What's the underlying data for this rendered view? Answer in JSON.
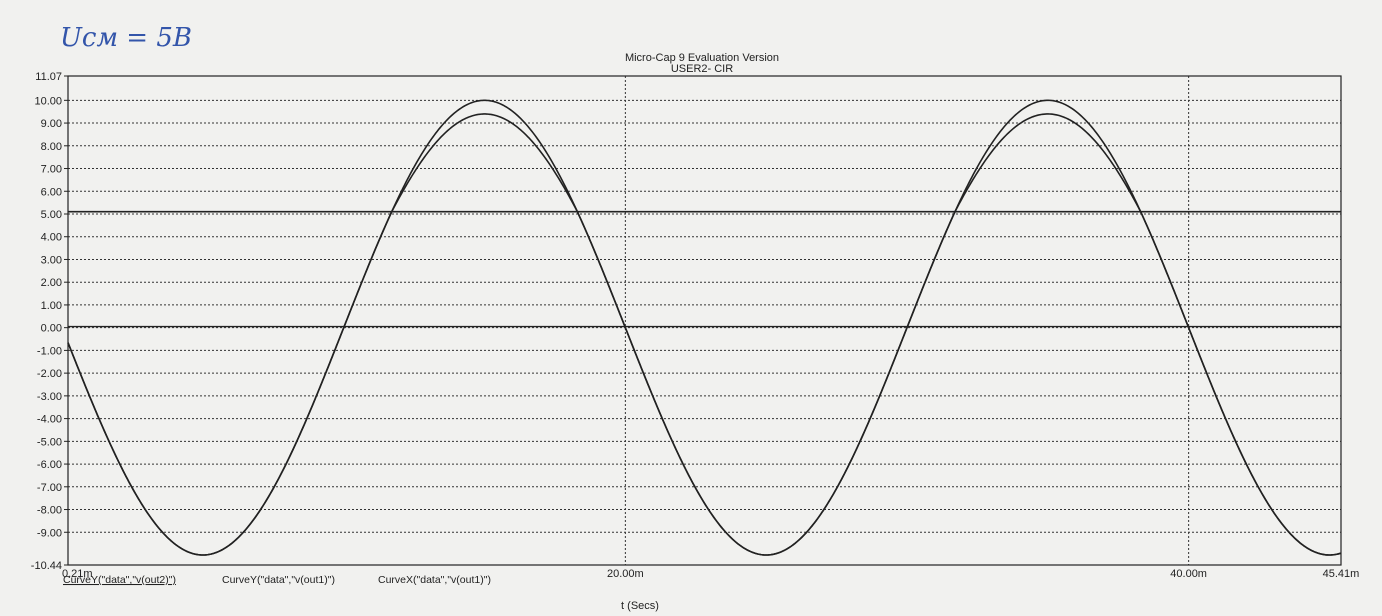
{
  "chart_data": {
    "type": "line",
    "title": "Micro-Cap 9 Evaluation Version",
    "subtitle": "USER2- CIR",
    "xlabel": "t (Secs)",
    "ylabel": "",
    "xlim": [
      0.21,
      45.41
    ],
    "ylim": [
      -10.44,
      11.07
    ],
    "x_unit": "m",
    "x_tick_labels": [
      "0.21m",
      "20.00m",
      "40.00m",
      "45.41m"
    ],
    "x_ticks": [
      0.21,
      20.0,
      40.0,
      45.41
    ],
    "y_tick_labels": [
      "11.07",
      "10.00",
      "9.00",
      "8.00",
      "7.00",
      "6.00",
      "5.00",
      "4.00",
      "3.00",
      "2.00",
      "1.00",
      "0.00",
      "-1.00",
      "-2.00",
      "-3.00",
      "-4.00",
      "-5.00",
      "-6.00",
      "-7.00",
      "-8.00",
      "-9.00",
      "-10.44"
    ],
    "y_ticks": [
      11.07,
      10,
      9,
      8,
      7,
      6,
      5,
      4,
      3,
      2,
      1,
      0,
      -1,
      -2,
      -3,
      -4,
      -5,
      -6,
      -7,
      -8,
      -9,
      -10.44
    ],
    "grid": true,
    "series": [
      {
        "name": "CurveY(\"data\",\"v(out2)\")",
        "x": [
          0.21,
          6.0,
          10.0,
          15.0,
          20.0,
          26.0,
          30.0,
          35.0,
          40.0,
          45.41
        ],
        "y": [
          -0.9,
          -9.8,
          -0.5,
          10.0,
          0.0,
          -9.7,
          0.0,
          10.1,
          0.0,
          -9.6
        ]
      },
      {
        "name": "CurveY(\"data\",\"v(out1)\")",
        "x": [
          0.21,
          6.0,
          10.0,
          12.0,
          15.0,
          18.0,
          20.0,
          26.0,
          30.0,
          32.5,
          35.0,
          37.5,
          40.0,
          45.41
        ],
        "y": [
          -0.9,
          -9.8,
          -0.5,
          5.1,
          9.45,
          5.1,
          0.0,
          -9.7,
          0.0,
          5.1,
          9.5,
          5.1,
          0.0,
          -9.6
        ]
      },
      {
        "name": "CurveX(\"data\",\"v(out1)\")",
        "x": [
          0.21,
          45.41
        ],
        "y": [
          5.1,
          5.1
        ]
      },
      {
        "name": "",
        "x": [
          0.21,
          45.41
        ],
        "y": [
          0.05,
          0.05
        ]
      }
    ],
    "sine": {
      "amplitude": 10.0,
      "period_m": 20.0,
      "zero_cross_m": 10.0,
      "clip_level": 5.1,
      "peak_reduction": 0.6
    },
    "annotation": "Uсм = 5В"
  }
}
